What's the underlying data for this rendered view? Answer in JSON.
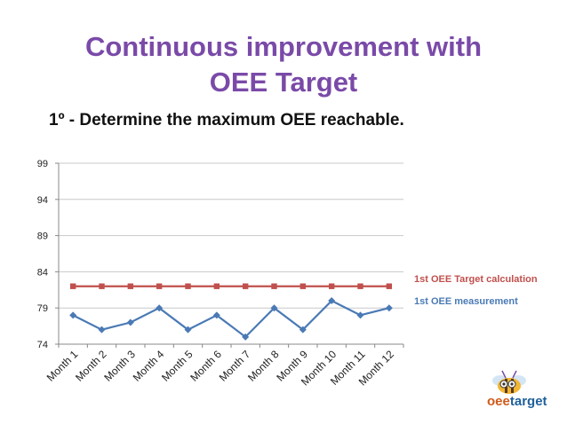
{
  "slide": {
    "title_line1": "Continuous improvement with",
    "title_line2": "OEE Target",
    "subtitle": "1º - Determine the maximum OEE reachable."
  },
  "colors": {
    "title": "#7a4aa8",
    "target_series": "#c0504d",
    "measurement_series": "#4a7ab5"
  },
  "chart_data": {
    "type": "line",
    "categories": [
      "Month 1",
      "Month 2",
      "Month 3",
      "Month 4",
      "Month 5",
      "Month 6",
      "Month 7",
      "Month 8",
      "Month 9",
      "Month 10",
      "Month 11",
      "Month 12"
    ],
    "series": [
      {
        "name": "1st OEE Target calculation",
        "values": [
          82,
          82,
          82,
          82,
          82,
          82,
          82,
          82,
          82,
          82,
          82,
          82
        ],
        "marker": "square",
        "color": "#c0504d"
      },
      {
        "name": "1st OEE measurement",
        "values": [
          78,
          76,
          77,
          79,
          76,
          78,
          75,
          79,
          76,
          80,
          78,
          79
        ],
        "marker": "diamond",
        "color": "#4a7ab5"
      }
    ],
    "ylim": [
      74,
      99
    ],
    "yticks": [
      74,
      79,
      84,
      89,
      94,
      99
    ],
    "grid": true,
    "legend": "right"
  },
  "logo": {
    "text_a": "oee",
    "text_b": "target",
    "icon": "bee-mascot-icon"
  }
}
